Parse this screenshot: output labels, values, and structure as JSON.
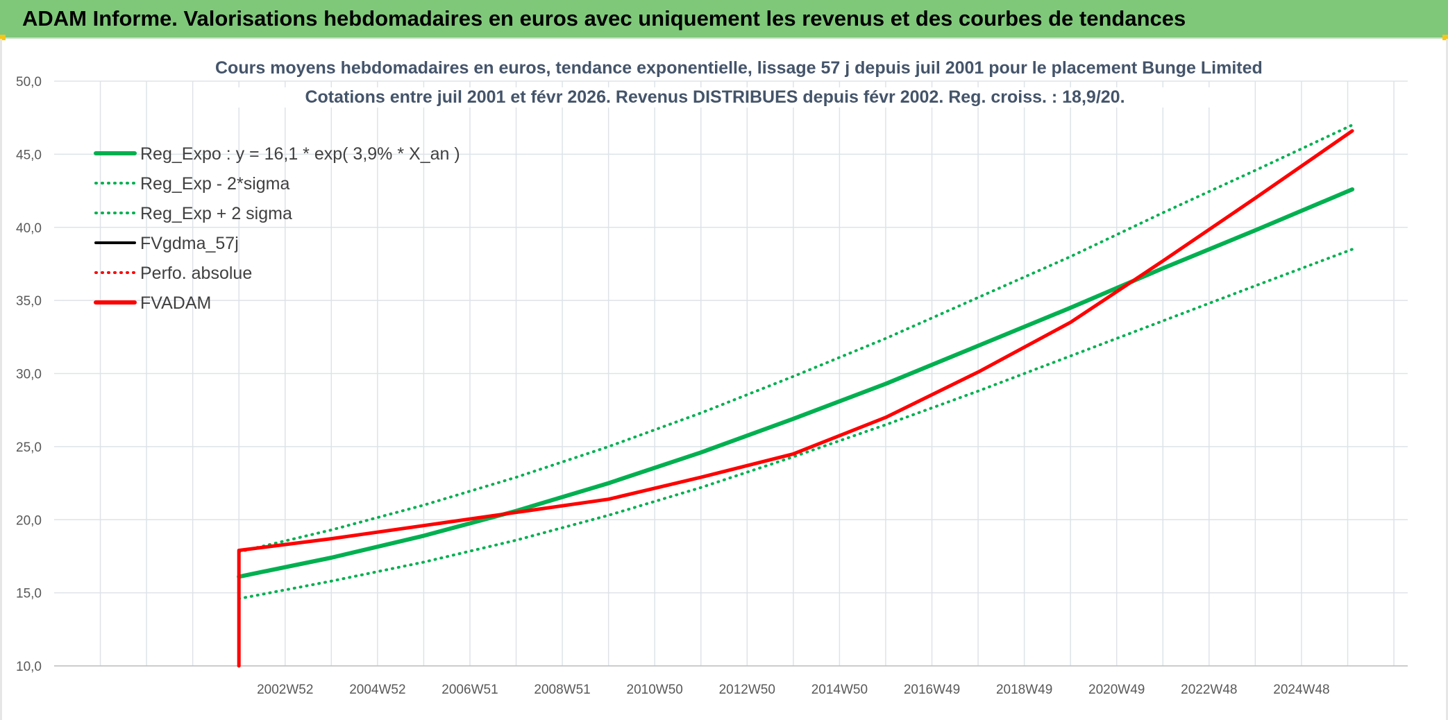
{
  "header": {
    "title": "ADAM Informe. Valorisations hebdomadaires en euros avec uniquement les revenus et des courbes de tendances"
  },
  "chart_data": {
    "type": "line",
    "title": "Cours moyens hebdomadaires en euros, tendance exponentielle, lissage 57 j depuis juil 2001 pour le placement Bunge Limited",
    "subtitle": "Cotations entre juil 2001 et févr 2026. Revenus DISTRIBUES depuis févr 2002. Reg. croiss. : 18,9/20.",
    "xlabel": "",
    "ylabel": "",
    "ylim": [
      10,
      50
    ],
    "y_ticks": [
      "10,0",
      "15,0",
      "20,0",
      "25,0",
      "30,0",
      "35,0",
      "40,0",
      "45,0",
      "50,0"
    ],
    "x_range": [
      1998.0,
      2027.3
    ],
    "x_ticks": [
      {
        "label": "2002W52",
        "x": 2003.0
      },
      {
        "label": "2004W52",
        "x": 2005.0
      },
      {
        "label": "2006W51",
        "x": 2007.0
      },
      {
        "label": "2008W51",
        "x": 2009.0
      },
      {
        "label": "2010W50",
        "x": 2011.0
      },
      {
        "label": "2012W50",
        "x": 2013.0
      },
      {
        "label": "2014W50",
        "x": 2015.0
      },
      {
        "label": "2016W49",
        "x": 2017.0
      },
      {
        "label": "2018W49",
        "x": 2019.0
      },
      {
        "label": "2020W49",
        "x": 2021.0
      },
      {
        "label": "2022W48",
        "x": 2023.0
      },
      {
        "label": "2024W48",
        "x": 2025.0
      }
    ],
    "series": [
      {
        "name": "Reg_Expo : y = 16,1 * exp( 3,9% *  X_an )",
        "color": "#00b050",
        "style": "solid",
        "x": [
          2002.0,
          2004.0,
          2006.0,
          2008.0,
          2010.0,
          2012.0,
          2014.0,
          2016.0,
          2018.0,
          2020.0,
          2022.0,
          2024.0,
          2026.1
        ],
        "values": [
          16.1,
          17.4,
          18.9,
          20.6,
          22.5,
          24.6,
          26.9,
          29.3,
          31.9,
          34.5,
          37.2,
          39.8,
          42.6
        ]
      },
      {
        "name": "Reg_Exp - 2*sigma",
        "color": "#00b050",
        "style": "dotted",
        "x": [
          2002.0,
          2004.0,
          2006.0,
          2008.0,
          2010.0,
          2012.0,
          2014.0,
          2016.0,
          2018.0,
          2020.0,
          2022.0,
          2024.0,
          2026.1
        ],
        "values": [
          14.6,
          15.8,
          17.1,
          18.6,
          20.3,
          22.2,
          24.3,
          26.5,
          28.8,
          31.2,
          33.6,
          36.0,
          38.5
        ]
      },
      {
        "name": "Reg_Exp + 2 sigma",
        "color": "#00b050",
        "style": "dotted",
        "x": [
          2002.0,
          2004.0,
          2006.0,
          2008.0,
          2010.0,
          2012.0,
          2014.0,
          2016.0,
          2018.0,
          2020.0,
          2022.0,
          2024.0,
          2026.1
        ],
        "values": [
          17.8,
          19.3,
          21.0,
          22.9,
          25.0,
          27.3,
          29.8,
          32.4,
          35.2,
          38.0,
          41.0,
          43.9,
          47.0
        ]
      },
      {
        "name": "FVgdma_57j",
        "color": "#000000",
        "style": "solid",
        "x": [
          2002.0,
          2004.0,
          2006.0,
          2008.0,
          2010.0,
          2012.0,
          2014.0,
          2016.0,
          2018.0,
          2020.0,
          2022.0,
          2024.0,
          2026.1
        ],
        "values": [
          17.9,
          18.7,
          19.6,
          20.5,
          21.4,
          22.9,
          24.5,
          27.0,
          30.1,
          33.5,
          37.7,
          42.0,
          46.6
        ]
      },
      {
        "name": "Perfo. absolue",
        "color": "#ff0000",
        "style": "dotted",
        "x": [],
        "values": []
      },
      {
        "name": "FVADAM",
        "color": "#ff0000",
        "style": "solid",
        "x": [
          2002.0,
          2002.0,
          2004.0,
          2006.0,
          2008.0,
          2010.0,
          2012.0,
          2014.0,
          2016.0,
          2018.0,
          2020.0,
          2022.0,
          2024.0,
          2026.1
        ],
        "values": [
          10.0,
          17.9,
          18.7,
          19.6,
          20.5,
          21.4,
          22.9,
          24.5,
          27.0,
          30.1,
          33.5,
          37.7,
          42.0,
          46.6
        ]
      }
    ],
    "legend_position": "top-left"
  }
}
